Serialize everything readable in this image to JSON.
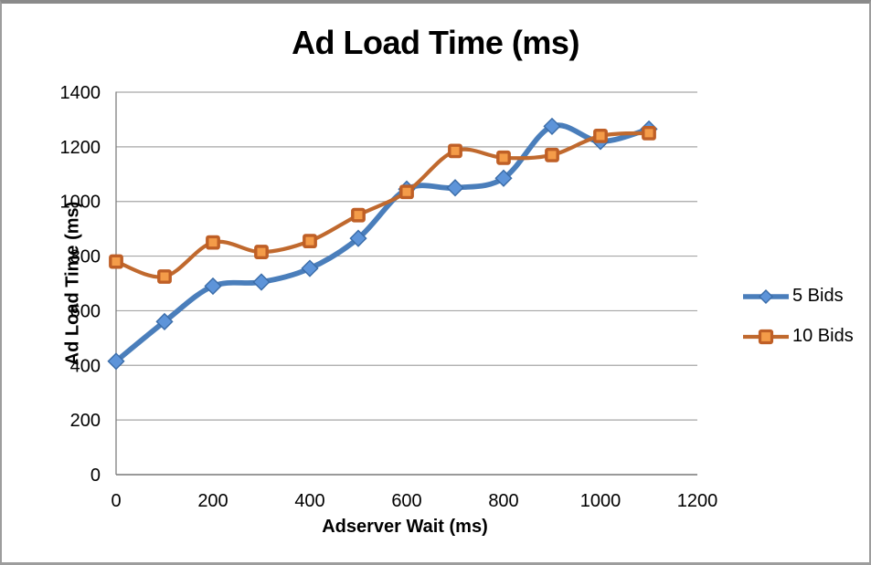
{
  "window": {
    "background": "#ffffff",
    "border_color": "#9d9d9d"
  },
  "chart_data": {
    "type": "line",
    "title": "Ad Load Time (ms)",
    "xlabel": "Adserver Wait (ms)",
    "ylabel": "Ad Load Time (ms)",
    "x": [
      0,
      100,
      200,
      300,
      400,
      500,
      600,
      700,
      800,
      900,
      1000,
      1100
    ],
    "series": [
      {
        "name": "5 Bids",
        "marker": "diamond",
        "line_color": "#4a7ebb",
        "marker_fill": "#5d94d9",
        "marker_stroke": "#3a6ca8",
        "values": [
          415,
          560,
          690,
          705,
          755,
          865,
          1045,
          1050,
          1085,
          1275,
          1220,
          1265
        ]
      },
      {
        "name": "10 Bids",
        "marker": "square",
        "line_color": "#c0692e",
        "marker_fill": "#f49c49",
        "marker_stroke": "#bf5f26",
        "values": [
          780,
          725,
          850,
          815,
          855,
          950,
          1035,
          1185,
          1160,
          1170,
          1240,
          1250
        ]
      }
    ],
    "xlim": [
      0,
      1200
    ],
    "ylim": [
      0,
      1400
    ],
    "x_ticks": [
      0,
      200,
      400,
      600,
      800,
      1000,
      1200
    ],
    "y_ticks": [
      0,
      200,
      400,
      600,
      800,
      1000,
      1200,
      1400
    ],
    "grid": "horizontal",
    "grid_color": "#a6a6a6",
    "axis_color": "#7f7f7f",
    "legend_position": "right",
    "smoothed_lines": true
  }
}
